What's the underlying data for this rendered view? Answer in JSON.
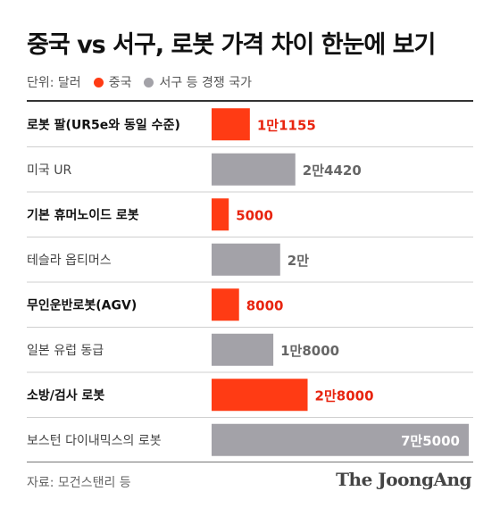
{
  "title": "중국 vs 서구, 로봇 가격 차이 한눈에 보기",
  "legend": {
    "unit": "단위: 달러",
    "china": "중국",
    "west": "서구 등 경쟁 국가"
  },
  "colors": {
    "china": "#ff3b14",
    "west": "#a3a2a8",
    "china_text": "#e8240f",
    "west_text": "#666666",
    "west_inside_text": "#ffffff"
  },
  "source": "자료: 모건스탠리 등",
  "brand": "The JoongAng",
  "chart_data": {
    "type": "bar",
    "orientation": "horizontal",
    "xlim": [
      0,
      75000
    ],
    "rows": [
      {
        "label": "로봇 팔(UR5e와 동일 수준)",
        "group": "china",
        "value": 11155,
        "value_label": "1만1155"
      },
      {
        "label": "미국 UR",
        "group": "west",
        "value": 24420,
        "value_label": "2만4420"
      },
      {
        "label": "기본 휴머노이드 로봇",
        "group": "china",
        "value": 5000,
        "value_label": "5000"
      },
      {
        "label": "테슬라 옵티머스",
        "group": "west",
        "value": 20000,
        "value_label": "2만"
      },
      {
        "label": "무인운반로봇(AGV)",
        "group": "china",
        "value": 8000,
        "value_label": "8000"
      },
      {
        "label": "일본 유럽 동급",
        "group": "west",
        "value": 18000,
        "value_label": "1만8000"
      },
      {
        "label": "소방/검사 로봇",
        "group": "china",
        "value": 28000,
        "value_label": "2만8000"
      },
      {
        "label": "보스턴 다이내믹스의 로봇",
        "group": "west",
        "value": 75000,
        "value_label": "7만5000"
      }
    ]
  }
}
